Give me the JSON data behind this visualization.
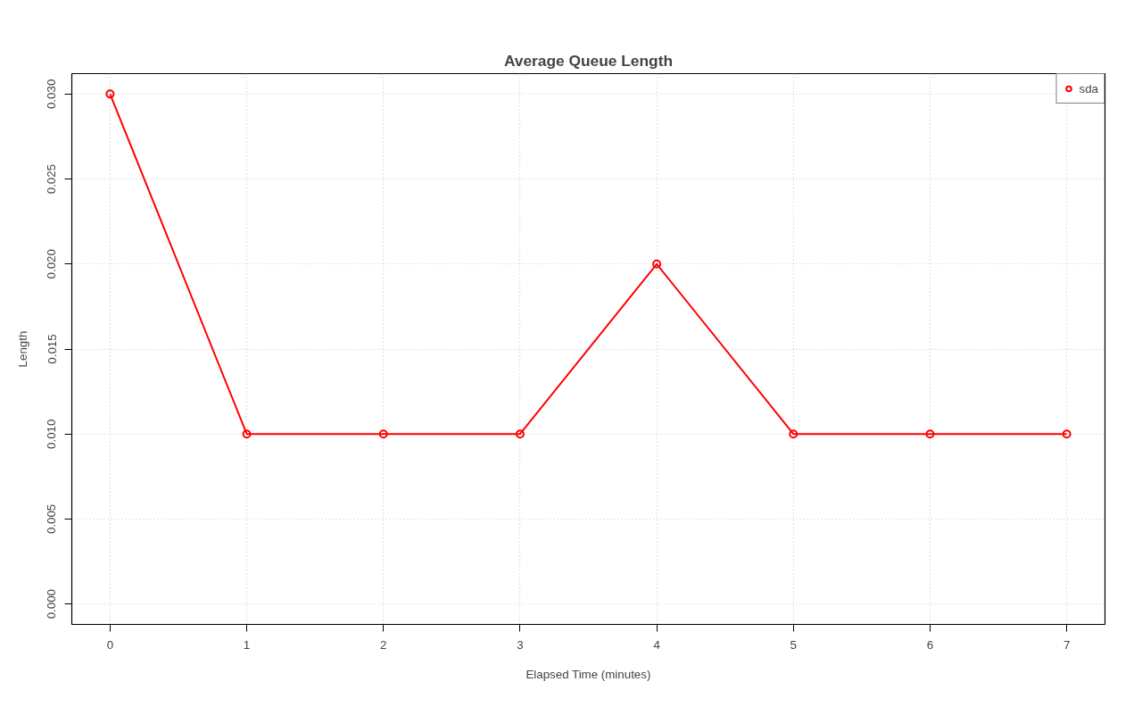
{
  "chart_data": {
    "type": "line",
    "title": "Average Queue Length",
    "xlabel": "Elapsed Time (minutes)",
    "ylabel": "Length",
    "x": [
      0,
      1,
      2,
      3,
      4,
      5,
      6,
      7
    ],
    "series": [
      {
        "name": "sda",
        "color": "#ff0000",
        "values": [
          0.03,
          0.01,
          0.01,
          0.01,
          0.02,
          0.01,
          0.01,
          0.01
        ]
      }
    ],
    "xlim": [
      -0.28,
      7.28
    ],
    "ylim": [
      -0.0012,
      0.0312
    ],
    "xticks": [
      0,
      1,
      2,
      3,
      4,
      5,
      6,
      7
    ],
    "yticks": [
      {
        "value": 0,
        "label": "0.000"
      },
      {
        "value": 0.005,
        "label": "0.005"
      },
      {
        "value": 0.01,
        "label": "0.010"
      },
      {
        "value": 0.015,
        "label": "0.015"
      },
      {
        "value": 0.02,
        "label": "0.020"
      },
      {
        "value": 0.025,
        "label": "0.025"
      },
      {
        "value": 0.03,
        "label": "0.030"
      }
    ],
    "grid": true,
    "legend": "top right",
    "marker": "circle",
    "line_style": "solid"
  }
}
